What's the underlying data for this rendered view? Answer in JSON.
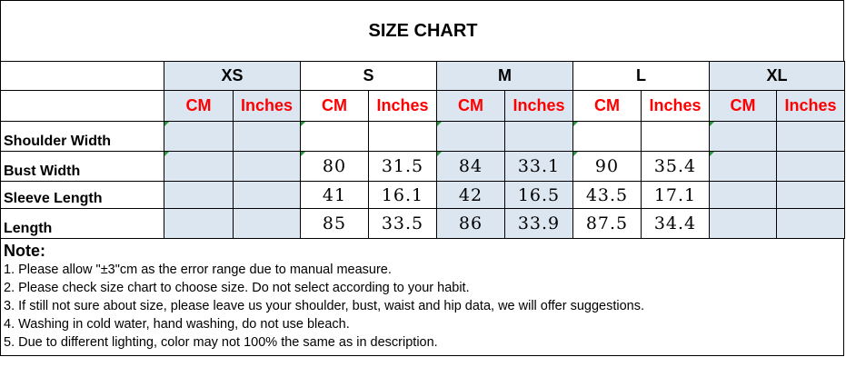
{
  "title": "SIZE CHART",
  "sizes": [
    "XS",
    "S",
    "M",
    "L",
    "XL"
  ],
  "units": [
    "CM",
    "Inches"
  ],
  "rows": [
    {
      "label": "Shoulder Width",
      "values": [
        "",
        "",
        "",
        "",
        "",
        "",
        "",
        "",
        "",
        ""
      ]
    },
    {
      "label": "Bust Width",
      "values": [
        "",
        "",
        "80",
        "31.5",
        "84",
        "33.1",
        "90",
        "35.4",
        "",
        ""
      ]
    },
    {
      "label": "Sleeve Length",
      "values": [
        "",
        "",
        "41",
        "16.1",
        "42",
        "16.5",
        "43.5",
        "17.1",
        "",
        ""
      ]
    },
    {
      "label": "Length",
      "values": [
        "",
        "",
        "85",
        "33.5",
        "86",
        "33.9",
        "87.5",
        "34.4",
        "",
        ""
      ]
    }
  ],
  "notes": {
    "heading": "Note:",
    "items": [
      "1. Please allow \"±3\"cm as the error range due to manual measure.",
      "2. Please check size chart to choose size. Do not select according to your habit.",
      "3. If still not sure about size, please leave us your shoulder, bust, waist and hip data, we will offer suggestions.",
      "4. Washing in cold water, hand washing, do not use bleach.",
      "5. Due to different lighting, color may not 100% the same as in description."
    ]
  },
  "colors": {
    "header_shade": "#dce6f1",
    "unit_text": "#ff0000",
    "marker": "#1f9d3a"
  }
}
